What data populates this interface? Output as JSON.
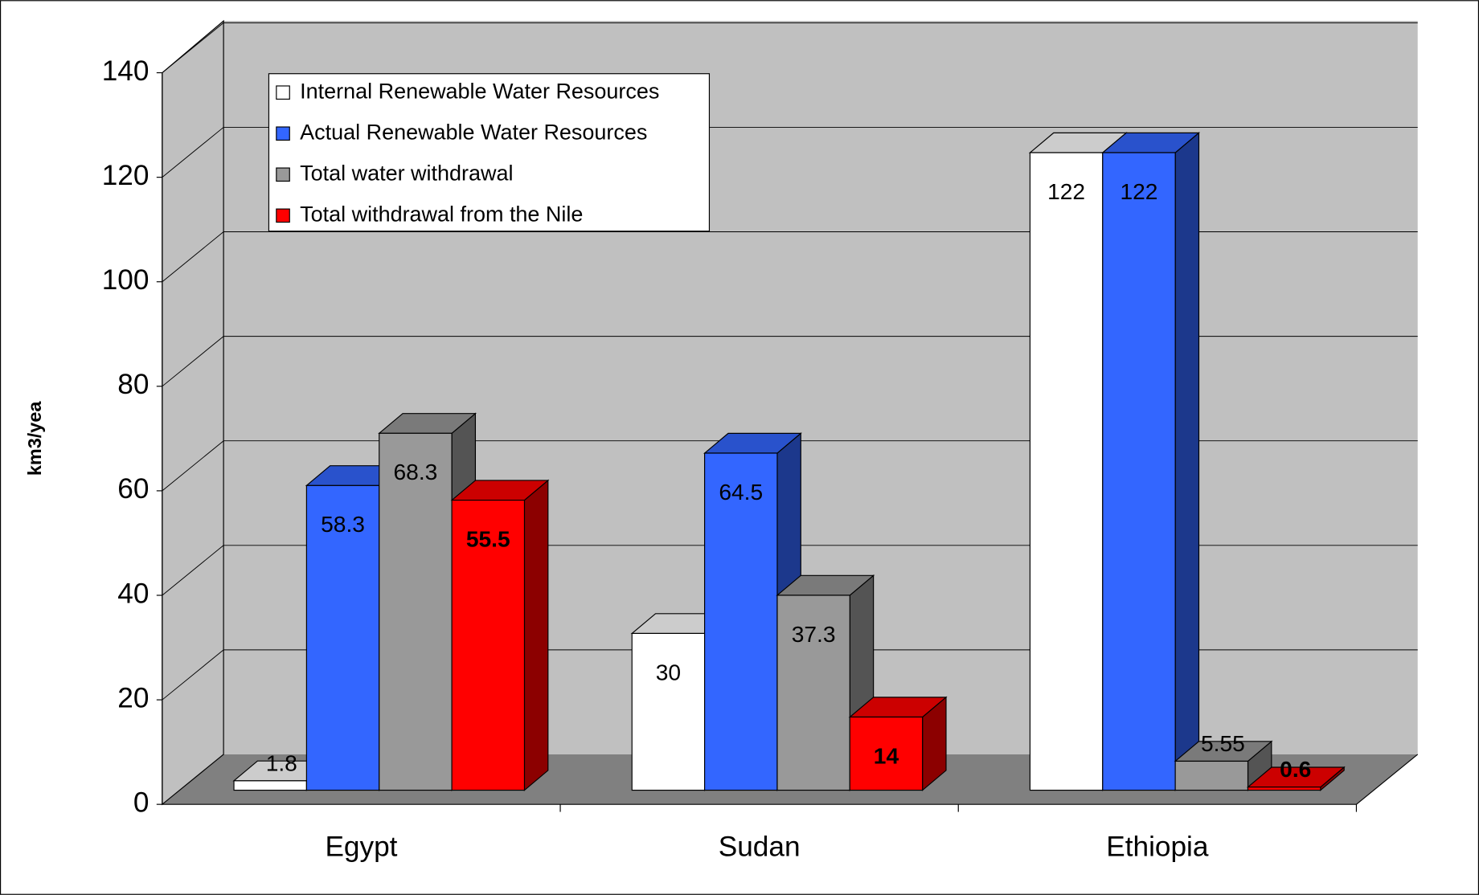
{
  "chart_data": {
    "type": "bar3d",
    "y_label": "km3/yea",
    "categories": [
      "Egypt",
      "Sudan",
      "Ethiopia"
    ],
    "series": [
      {
        "name": "Internal Renewable Water Resources",
        "color": "#ffffff",
        "values": [
          1.8,
          30,
          122
        ]
      },
      {
        "name": "Actual Renewable Water Resources",
        "color": "#3366ff",
        "values": [
          58.3,
          64.5,
          122
        ]
      },
      {
        "name": "Total water withdrawal",
        "color": "#999999",
        "values": [
          68.3,
          37.3,
          5.55
        ]
      },
      {
        "name": "Total withdrawal from the Nile",
        "color": "#ff0000",
        "values": [
          55.5,
          14,
          0.6
        ]
      }
    ],
    "ylim": [
      0,
      140
    ],
    "yticks": [
      0,
      20,
      40,
      60,
      80,
      100,
      120,
      140
    ],
    "grid": true,
    "legend": "top-left"
  }
}
